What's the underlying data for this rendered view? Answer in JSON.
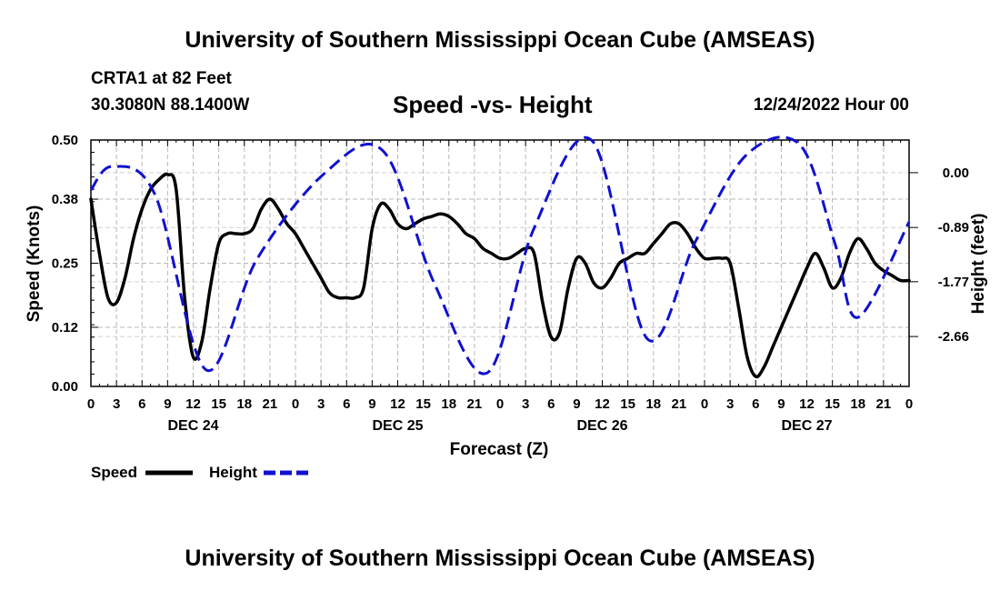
{
  "header": {
    "title": "University of Southern Mississippi Ocean Cube (AMSEAS)",
    "station": "CRTA1 at 82 Feet",
    "coordinates": "30.3080N  88.1400W",
    "subtitle": "Speed -vs- Height",
    "datetime": "12/24/2022 Hour 00"
  },
  "footer": {
    "title": "University of Southern Mississippi Ocean Cube (AMSEAS)"
  },
  "chart_data": {
    "type": "line",
    "title": "Speed -vs- Height",
    "xlabel": "Forecast (Z)",
    "ylabel": "Speed (Knots)",
    "y2label": "Height (feet)",
    "xlim": [
      0,
      96
    ],
    "ylim": [
      0,
      0.5
    ],
    "y2lim": [
      -3.47,
      0.53
    ],
    "x_ticks": [
      0,
      3,
      6,
      9,
      12,
      15,
      18,
      21,
      24,
      27,
      30,
      33,
      36,
      39,
      42,
      45,
      48,
      51,
      54,
      57,
      60,
      63,
      66,
      69,
      72,
      75,
      78,
      81,
      84,
      87,
      90,
      93,
      96
    ],
    "x_tick_labels": [
      "0",
      "3",
      "6",
      "9",
      "12",
      "15",
      "18",
      "21",
      "0",
      "3",
      "6",
      "9",
      "12",
      "15",
      "18",
      "21",
      "0",
      "3",
      "6",
      "9",
      "12",
      "15",
      "18",
      "21",
      "0",
      "3",
      "6",
      "9",
      "12",
      "15",
      "18",
      "21",
      "0"
    ],
    "day_labels": [
      {
        "hour": 12,
        "label": "DEC 24"
      },
      {
        "hour": 36,
        "label": "DEC 25"
      },
      {
        "hour": 60,
        "label": "DEC 26"
      },
      {
        "hour": 84,
        "label": "DEC 27"
      }
    ],
    "y_ticks": [
      0.0,
      0.12,
      0.25,
      0.38,
      0.5
    ],
    "y_tick_labels": [
      "0.00",
      "0.12",
      "0.25",
      "0.38",
      "0.50"
    ],
    "y2_ticks": [
      0.0,
      -0.89,
      -1.77,
      -2.66
    ],
    "y2_tick_labels": [
      "0.00",
      "-0.89",
      "-1.77",
      "-2.66"
    ],
    "grid": true,
    "series": [
      {
        "name": "Speed",
        "axis": "left",
        "color": "#000000",
        "style": "solid",
        "x": [
          0,
          1,
          2,
          3,
          4,
          5,
          6,
          7,
          8,
          9,
          10,
          11,
          12,
          13,
          14,
          15,
          16,
          17,
          18,
          19,
          20,
          21,
          22,
          23,
          24,
          25,
          26,
          27,
          28,
          29,
          30,
          31,
          32,
          33,
          34,
          35,
          36,
          37,
          38,
          39,
          40,
          41,
          42,
          43,
          44,
          45,
          46,
          47,
          48,
          49,
          50,
          51,
          52,
          53,
          54,
          55,
          56,
          57,
          58,
          59,
          60,
          61,
          62,
          63,
          64,
          65,
          66,
          67,
          68,
          69,
          70,
          71,
          72,
          73,
          74,
          75,
          76,
          77,
          78,
          79,
          80,
          81,
          82,
          83,
          84,
          85,
          86,
          87,
          88,
          89,
          90,
          91,
          92,
          93,
          94,
          95,
          96
        ],
        "values": [
          0.38,
          0.27,
          0.18,
          0.17,
          0.22,
          0.3,
          0.36,
          0.4,
          0.42,
          0.43,
          0.4,
          0.18,
          0.06,
          0.09,
          0.2,
          0.29,
          0.31,
          0.31,
          0.31,
          0.32,
          0.36,
          0.38,
          0.36,
          0.33,
          0.31,
          0.28,
          0.25,
          0.22,
          0.19,
          0.18,
          0.18,
          0.18,
          0.2,
          0.32,
          0.37,
          0.36,
          0.33,
          0.32,
          0.33,
          0.34,
          0.345,
          0.35,
          0.345,
          0.33,
          0.31,
          0.3,
          0.28,
          0.27,
          0.26,
          0.26,
          0.27,
          0.28,
          0.27,
          0.17,
          0.1,
          0.11,
          0.2,
          0.26,
          0.25,
          0.21,
          0.2,
          0.22,
          0.25,
          0.26,
          0.27,
          0.27,
          0.29,
          0.31,
          0.33,
          0.33,
          0.31,
          0.28,
          0.26,
          0.26,
          0.26,
          0.25,
          0.16,
          0.06,
          0.02,
          0.04,
          0.08,
          0.12,
          0.16,
          0.2,
          0.24,
          0.27,
          0.24,
          0.2,
          0.22,
          0.27,
          0.3,
          0.28,
          0.25,
          0.235,
          0.225,
          0.215,
          0.215
        ]
      },
      {
        "name": "Height",
        "axis": "right",
        "color": "#1010d0",
        "style": "dashed",
        "x": [
          0,
          2.5,
          7.5,
          13.5,
          19.5,
          27.5,
          34.3,
          40.3,
          46.5,
          52,
          58.8,
          65.3,
          71,
          77,
          83.2,
          87.3,
          90,
          96
        ],
        "values": [
          -0.28,
          0.1,
          -0.35,
          -3.2,
          -1.4,
          0.0,
          0.35,
          -1.8,
          -3.25,
          -0.9,
          0.52,
          -2.7,
          -1.1,
          0.3,
          0.45,
          -1.15,
          -2.35,
          -0.8
        ]
      }
    ]
  }
}
